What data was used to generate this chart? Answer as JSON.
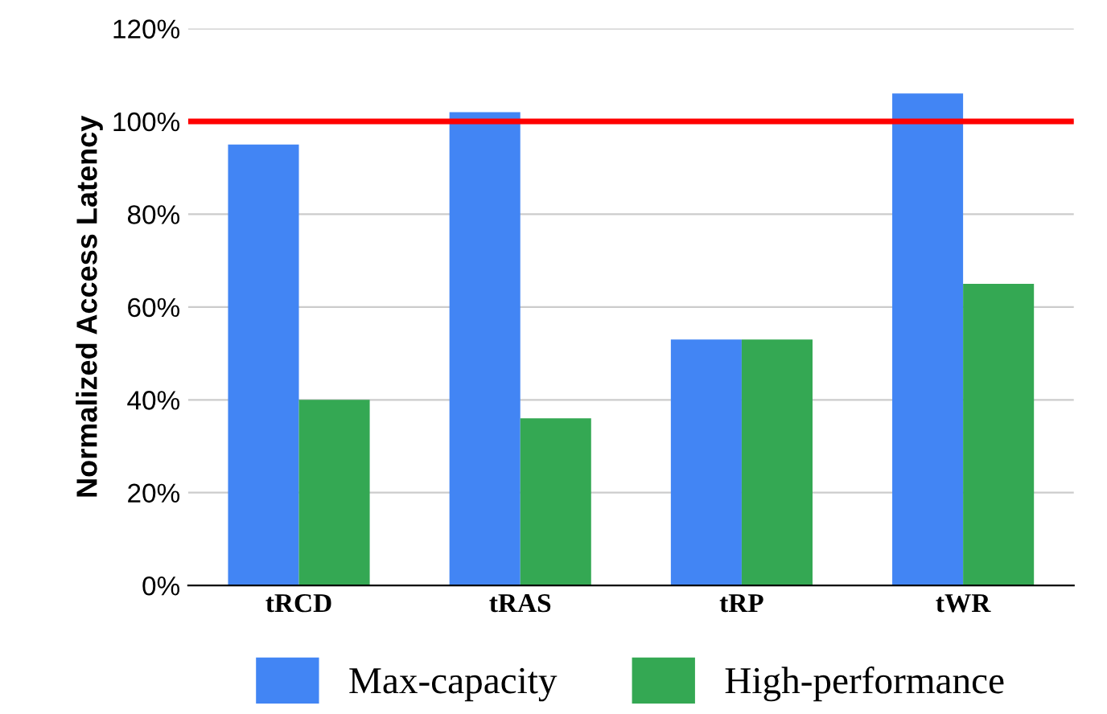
{
  "chart_data": {
    "type": "bar",
    "ylabel": "Normalized Access Latency",
    "categories": [
      "tRCD",
      "tRAS",
      "tRP",
      "tWR"
    ],
    "series": [
      {
        "name": "Max-capacity",
        "color": "#4285f4",
        "values": [
          95,
          102,
          53,
          106
        ]
      },
      {
        "name": "High-performance",
        "color": "#34a853",
        "values": [
          40,
          36,
          53,
          65
        ]
      }
    ],
    "ylim": [
      0,
      120
    ],
    "yticks": [
      {
        "value": 0,
        "label": "0%"
      },
      {
        "value": 20,
        "label": "20%"
      },
      {
        "value": 40,
        "label": "40%"
      },
      {
        "value": 60,
        "label": "60%"
      },
      {
        "value": 80,
        "label": "80%"
      },
      {
        "value": 100,
        "label": "100%"
      },
      {
        "value": 120,
        "label": "120%"
      }
    ],
    "ref_lines": [
      {
        "axis": "y",
        "value": 100,
        "color": "#ff0000"
      }
    ],
    "grid": "y",
    "legend": "bottom"
  }
}
